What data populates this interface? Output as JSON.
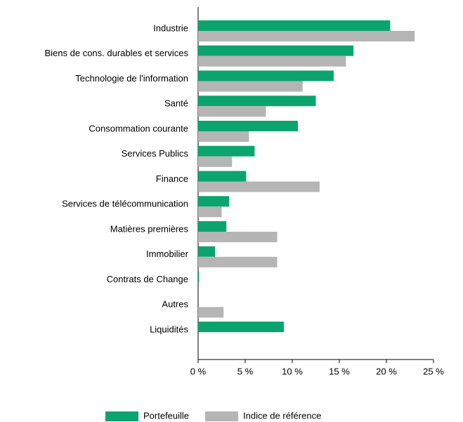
{
  "chart_data": {
    "type": "hbar",
    "categories": [
      "Industrie",
      "Biens de cons. durables et services",
      "Technologie de l'information",
      "Santé",
      "Consommation courante",
      "Services Publics",
      "Finance",
      "Services de télécommunication",
      "Matières premières",
      "Immobilier",
      "Contrats de Change",
      "Autres",
      "Liquidités"
    ],
    "series": [
      {
        "name": "Portefeuille",
        "color": "#0ba46f",
        "values": [
          20.4,
          16.5,
          14.4,
          12.5,
          10.6,
          6.0,
          5.1,
          3.3,
          3.0,
          1.8,
          0.1,
          0,
          9.1
        ]
      },
      {
        "name": "Indice de référence",
        "color": "#b5b5b5",
        "values": [
          23.0,
          15.7,
          11.1,
          7.2,
          5.4,
          3.6,
          12.9,
          2.5,
          8.4,
          8.4,
          0,
          2.7,
          0
        ]
      }
    ],
    "xlim": [
      0,
      25
    ],
    "xticks": [
      {
        "value": 0,
        "label": "0 %"
      },
      {
        "value": 5,
        "label": "5 %"
      },
      {
        "value": 10,
        "label": "10 %"
      },
      {
        "value": 15,
        "label": "15 %"
      },
      {
        "value": 20,
        "label": "20 %"
      },
      {
        "value": 25,
        "label": "25 %"
      }
    ],
    "grid": false,
    "legend": "bottom"
  }
}
